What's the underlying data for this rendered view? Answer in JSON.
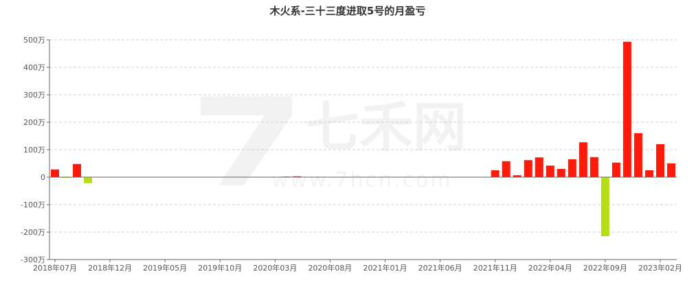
{
  "watermark": {
    "brand": "七禾网",
    "url": "www.7hcn.com"
  },
  "chart_data": {
    "type": "bar",
    "title": "木火系-三十三度进取5号的月盈亏",
    "xlabel": "",
    "ylabel": "",
    "ylim": [
      -300,
      500
    ],
    "yticks": [
      500,
      400,
      300,
      200,
      100,
      0,
      -100,
      -200,
      -300
    ],
    "ytick_labels": [
      "500万",
      "400万",
      "300万",
      "200万",
      "100万",
      "0",
      "-100万",
      "-200万",
      "-300万"
    ],
    "xtick_labels": [
      "2018年07月",
      "2018年12月",
      "2019年05月",
      "2019年10月",
      "2020年03月",
      "2020年08月",
      "2021年01月",
      "2021年06月",
      "2021年11月",
      "2022年04月",
      "2022年09月",
      "2023年02月"
    ],
    "grid": true,
    "colors": {
      "positive": "#ff1a0a",
      "negative": "#b5de14"
    },
    "categories": [
      "2018年07月",
      "2018年08月",
      "2018年09月",
      "2018年10月",
      "2018年11月",
      "2018年12月",
      "2019年01月",
      "2019年02月",
      "2019年03月",
      "2019年04月",
      "2019年05月",
      "2019年06月",
      "2019年07月",
      "2019年08月",
      "2019年09月",
      "2019年10月",
      "2019年11月",
      "2019年12月",
      "2020年01月",
      "2020年02月",
      "2020年03月",
      "2020年04月",
      "2020年05月",
      "2020年06月",
      "2020年07月",
      "2020年08月",
      "2020年09月",
      "2020年10月",
      "2020年11月",
      "2020年12月",
      "2021年01月",
      "2021年02月",
      "2021年03月",
      "2021年04月",
      "2021年05月",
      "2021年06月",
      "2021年07月",
      "2021年08月",
      "2021年09月",
      "2021年10月",
      "2021年11月",
      "2021年12月",
      "2022年01月",
      "2022年02月",
      "2022年03月",
      "2022年04月",
      "2022年05月",
      "2022年06月",
      "2022年07月",
      "2022年08月",
      "2022年09月",
      "2022年10月",
      "2022年11月",
      "2022年12月",
      "2023年01月",
      "2023年02月",
      "2023年03月"
    ],
    "values": [
      28,
      -2,
      48,
      -22,
      0,
      0,
      0,
      0,
      0,
      0,
      0,
      0,
      0,
      0,
      0,
      0,
      0,
      0,
      0,
      0,
      0,
      2,
      3,
      0,
      0,
      0,
      0,
      0,
      0,
      0,
      0,
      0,
      0,
      0,
      0,
      0,
      0,
      0,
      0,
      0,
      25,
      58,
      7,
      62,
      72,
      42,
      30,
      65,
      127,
      73,
      -215,
      53,
      493,
      160,
      25,
      120,
      50
    ]
  }
}
